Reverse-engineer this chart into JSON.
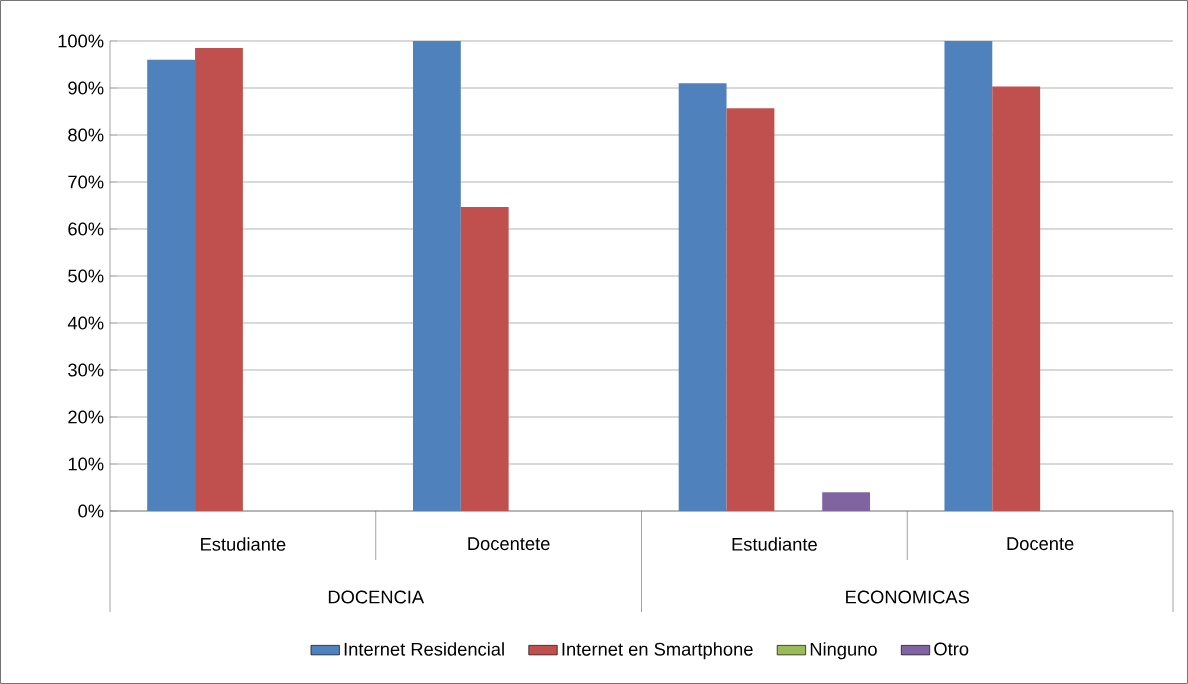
{
  "chart_data": {
    "type": "bar",
    "categories": [
      "Estudiante",
      "Docentete",
      "Estudiante",
      "Docente"
    ],
    "annotations": [
      "DOCENCIA",
      "ECONOMICAS"
    ],
    "series": [
      {
        "name": "Internet Residencial",
        "color": "#4f81bd",
        "values": [
          96,
          100,
          91,
          100
        ]
      },
      {
        "name": "Internet en Smartphone",
        "color": "#c0504d",
        "values": [
          98.5,
          64.7,
          85.7,
          90.3
        ]
      },
      {
        "name": "Ninguno",
        "color": "#9bbb59",
        "values": [
          0,
          0,
          0,
          0
        ]
      },
      {
        "name": "Otro",
        "color": "#8064a2",
        "values": [
          0,
          0,
          4,
          0
        ]
      }
    ],
    "ylim": [
      0,
      100
    ],
    "yticks": [
      {
        "value": 0,
        "label": "0%"
      },
      {
        "value": 10,
        "label": "10%"
      },
      {
        "value": 20,
        "label": "20%"
      },
      {
        "value": 30,
        "label": "30%"
      },
      {
        "value": 40,
        "label": "40%"
      },
      {
        "value": 50,
        "label": "50%"
      },
      {
        "value": 60,
        "label": "60%"
      },
      {
        "value": 70,
        "label": "70%"
      },
      {
        "value": 80,
        "label": "80%"
      },
      {
        "value": 90,
        "label": "90%"
      },
      {
        "value": 100,
        "label": "100%"
      }
    ],
    "grid": "y",
    "legend": "bottom"
  }
}
